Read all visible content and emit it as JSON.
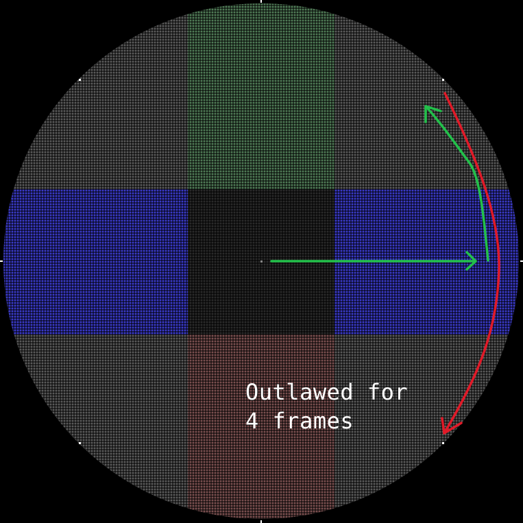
{
  "caption": {
    "line1": "Outlawed for",
    "line2": "4 frames"
  },
  "zones": {
    "center": {
      "name": "deadzone",
      "color": "#2a2a2a"
    },
    "up": {
      "name": "up",
      "color": "#4f7a56"
    },
    "down": {
      "name": "down",
      "color": "#7a4f4f"
    },
    "left": {
      "name": "left",
      "color": "#3a3ac8"
    },
    "right": {
      "name": "right",
      "color": "#3a3ac8"
    },
    "diagonal": {
      "name": "diagonal",
      "color": "#5a5a5a"
    }
  },
  "arrows": [
    {
      "name": "stick-to-right-arrow",
      "color": "#22c04a"
    },
    {
      "name": "right-to-up-arc-arrow",
      "color": "#22c04a"
    },
    {
      "name": "up-to-down-arc-arrow",
      "color": "#e01a28"
    }
  ],
  "colors": {
    "background": "#000000",
    "grid_line": "#000000",
    "tick": "#ffffff",
    "text": "#ffffff"
  }
}
